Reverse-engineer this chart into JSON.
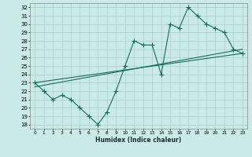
{
  "xlabel": "Humidex (Indice chaleur)",
  "xlim": [
    -0.5,
    23.5
  ],
  "ylim": [
    17.5,
    32.5
  ],
  "xticks": [
    0,
    1,
    2,
    3,
    4,
    5,
    6,
    7,
    8,
    9,
    10,
    11,
    12,
    13,
    14,
    15,
    16,
    17,
    18,
    19,
    20,
    21,
    22,
    23
  ],
  "yticks": [
    18,
    19,
    20,
    21,
    22,
    23,
    24,
    25,
    26,
    27,
    28,
    29,
    30,
    31,
    32
  ],
  "background_color": "#c9eae8",
  "grid_color": "#a8ceca",
  "line_color": "#1a6b5a",
  "data_x": [
    0,
    1,
    2,
    3,
    4,
    5,
    6,
    7,
    8,
    9,
    10,
    11,
    12,
    13,
    14,
    15,
    16,
    17,
    18,
    19,
    20,
    21,
    22,
    23
  ],
  "data_y": [
    23,
    22,
    21,
    21.5,
    21,
    20,
    19,
    18,
    19.5,
    22,
    25,
    28,
    27.5,
    27.5,
    24,
    30,
    29.5,
    32,
    31,
    30,
    29.5,
    29,
    27,
    26.5
  ],
  "line2_x": [
    0,
    23
  ],
  "line2_y": [
    22.5,
    27.0
  ],
  "line3_x": [
    0,
    23
  ],
  "line3_y": [
    23.0,
    26.5
  ],
  "marker_style": "+",
  "marker_size": 4,
  "linewidth": 0.8
}
